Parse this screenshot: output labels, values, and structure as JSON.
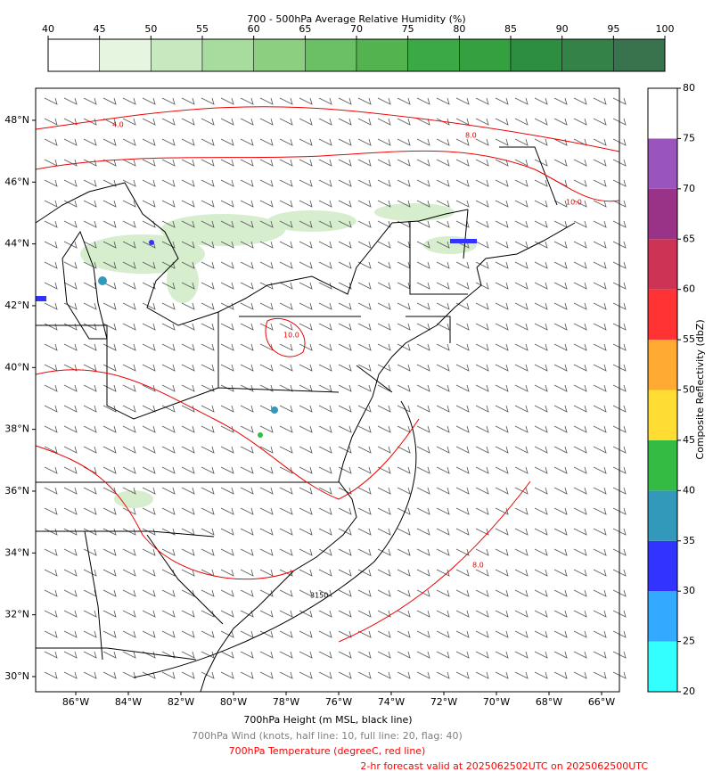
{
  "rh_colorbar": {
    "title": "700 - 500hPa Average Relative Humidity (%)",
    "ticks": [
      40,
      45,
      50,
      55,
      60,
      65,
      70,
      75,
      80,
      85,
      90,
      95,
      100
    ],
    "colors": [
      "#ffffff",
      "#e5f5e0",
      "#c7e9c0",
      "#a8dc9f",
      "#8ccf80",
      "#6cc064",
      "#52b34f",
      "#3caa44",
      "#35a040",
      "#2e8e40",
      "#348247",
      "#38734e"
    ]
  },
  "refl_colorbar": {
    "label": "Composite Reflectivity (dbZ)",
    "ticks": [
      20,
      25,
      30,
      35,
      40,
      45,
      50,
      55,
      60,
      65,
      70,
      75,
      80
    ],
    "colors": [
      "#33ffff",
      "#33aaff",
      "#3333ff",
      "#3399bb",
      "#33bb44",
      "#ffdd33",
      "#ffaa33",
      "#ff3333",
      "#cc3355",
      "#993388",
      "#9955bb",
      "#ffffff"
    ]
  },
  "map": {
    "lat_ticks": [
      {
        "value": 30,
        "label": "30°N"
      },
      {
        "value": 32,
        "label": "32°N"
      },
      {
        "value": 34,
        "label": "34°N"
      },
      {
        "value": 36,
        "label": "36°N"
      },
      {
        "value": 38,
        "label": "38°N"
      },
      {
        "value": 40,
        "label": "40°N"
      },
      {
        "value": 42,
        "label": "42°N"
      },
      {
        "value": 44,
        "label": "44°N"
      },
      {
        "value": 46,
        "label": "46°N"
      },
      {
        "value": 48,
        "label": "48°N"
      }
    ],
    "lon_ticks": [
      {
        "value": -86,
        "label": "86°W"
      },
      {
        "value": -84,
        "label": "84°W"
      },
      {
        "value": -82,
        "label": "82°W"
      },
      {
        "value": -80,
        "label": "80°W"
      },
      {
        "value": -78,
        "label": "78°W"
      },
      {
        "value": -76,
        "label": "76°W"
      },
      {
        "value": -74,
        "label": "74°W"
      },
      {
        "value": -72,
        "label": "72°W"
      },
      {
        "value": -70,
        "label": "70°W"
      },
      {
        "value": -68,
        "label": "68°W"
      },
      {
        "value": -66,
        "label": "66°W"
      }
    ],
    "contour_labels": [
      "4.0",
      "8.0",
      "10.0",
      "10.0",
      "8.0",
      "3150"
    ]
  },
  "captions": [
    {
      "text": "700hPa Height (m MSL, black line)",
      "color": "#000000"
    },
    {
      "text": "700hPa Wind (knots, half line: 10, full line: 20, flag: 40)",
      "color": "#808080"
    },
    {
      "text": "700hPa Temperature (degreeC, red line)",
      "color": "#ff0000"
    },
    {
      "text": "2-hr forecast valid at 2025062502UTC on 2025062500UTC",
      "color": "#ff0000"
    }
  ]
}
